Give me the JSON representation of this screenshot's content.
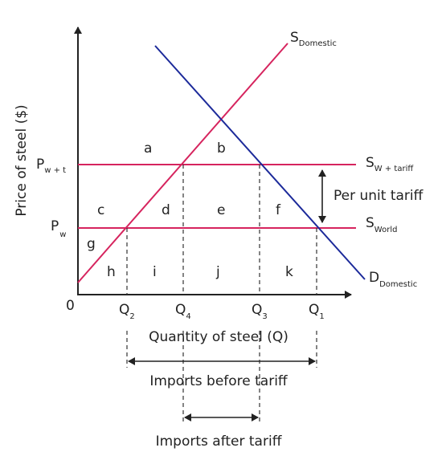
{
  "axes": {
    "y_label": "Price of steel ($)",
    "x_label": "Quantity of steel (Q)",
    "origin": "0"
  },
  "price_labels": {
    "p_wt_main": "P",
    "p_wt_sub": "w + t",
    "p_w_main": "P",
    "p_w_sub": "w"
  },
  "quantity_labels": {
    "q2_main": "Q",
    "q2_sub": "2",
    "q4_main": "Q",
    "q4_sub": "4",
    "q3_main": "Q",
    "q3_sub": "3",
    "q1_main": "Q",
    "q1_sub": "1"
  },
  "curves": {
    "s_domestic_main": "S",
    "s_domestic_sub": "Domestic",
    "d_domestic_main": "D",
    "d_domestic_sub": "Domestic",
    "s_wtariff_main": "S",
    "s_wtariff_sub": "W + tariff",
    "s_world_main": "S",
    "s_world_sub": "World"
  },
  "areas": {
    "a": "a",
    "b": "b",
    "c": "c",
    "d": "d",
    "e": "e",
    "f": "f",
    "g": "g",
    "h": "h",
    "i": "i",
    "j": "j",
    "k": "k"
  },
  "annotations": {
    "per_unit_tariff": "Per unit tariff",
    "imports_before": "Imports before tariff",
    "imports_after": "Imports after tariff"
  },
  "colors": {
    "supply": "#d6245e",
    "demand": "#1c2a9a",
    "axis": "#222222"
  }
}
